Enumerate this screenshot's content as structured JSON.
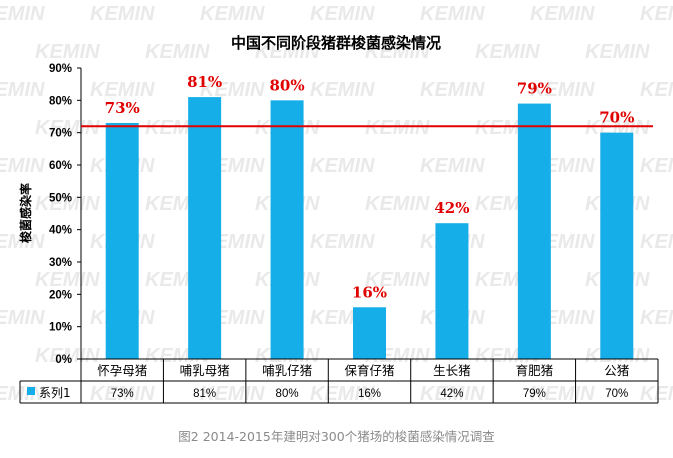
{
  "watermark": "KEMIN",
  "caption": "图2 2014-2015年建明对300个猪场的梭菌感染情况调查",
  "colors": {
    "bar": "#16aee8",
    "reference_line": "#e00000",
    "data_label": "#e00000"
  },
  "chart_data": {
    "type": "bar",
    "title": "中国不同阶段猪群梭菌感染情况",
    "xlabel": "",
    "ylabel": "梭菌感染率",
    "ylim": [
      0,
      90
    ],
    "yticks": [
      "0%",
      "10%",
      "20%",
      "30%",
      "40%",
      "50%",
      "60%",
      "70%",
      "80%",
      "90%"
    ],
    "grid": false,
    "categories": [
      "怀孕母猪",
      "哺乳母猪",
      "哺乳仔猪",
      "保育仔猪",
      "生长猪",
      "育肥猪",
      "公猪"
    ],
    "series": [
      {
        "name": "系列1",
        "values": [
          73,
          81,
          80,
          16,
          42,
          79,
          70
        ],
        "labels": [
          "73%",
          "81%",
          "80%",
          "16%",
          "42%",
          "79%",
          "70%"
        ]
      }
    ],
    "reference_line": 72,
    "data_table": true
  }
}
